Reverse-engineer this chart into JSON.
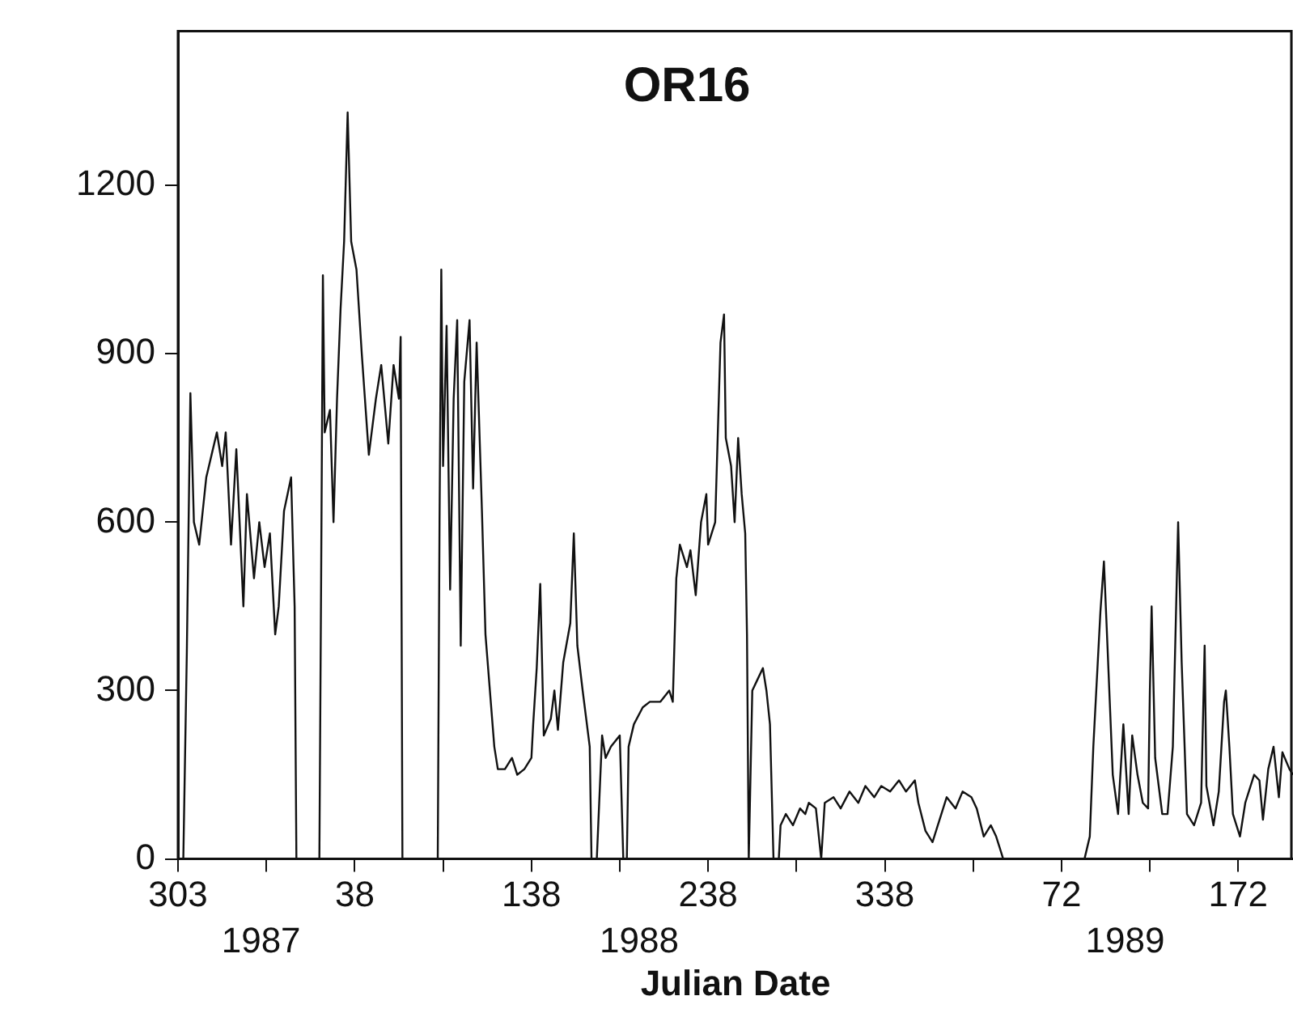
{
  "chart_data": {
    "type": "line",
    "title": "OR16",
    "xlabel": "Julian Date",
    "marker": "none",
    "grid": false,
    "legend": false,
    "xlim": [
      "1987-10-30",
      "1989-07-22"
    ],
    "xticks": [
      {
        "value": "1987-10-30",
        "label": "303"
      },
      {
        "value": "1987-12-19",
        "label": null
      },
      {
        "value": "1988-02-07",
        "label": "38"
      },
      {
        "value": "1988-03-28",
        "label": null
      },
      {
        "value": "1988-05-17",
        "label": "138"
      },
      {
        "value": "1988-07-06",
        "label": null
      },
      {
        "value": "1988-08-25",
        "label": "238"
      },
      {
        "value": "1988-10-14",
        "label": null
      },
      {
        "value": "1988-12-03",
        "label": "338"
      },
      {
        "value": "1989-01-22",
        "label": null
      },
      {
        "value": "1989-03-13",
        "label": "72"
      },
      {
        "value": "1989-05-02",
        "label": null
      },
      {
        "value": "1989-06-21",
        "label": "172"
      }
    ],
    "x2lim": [
      "1987-10-30",
      "1989-07-22"
    ],
    "x2ticks": [
      {
        "value": "1987-12-16",
        "label": "1987"
      },
      {
        "value": "1988-07-17",
        "label": "1988"
      },
      {
        "value": "1989-04-18",
        "label": "1989"
      }
    ],
    "ylim": [
      0,
      1475
    ],
    "yticks": [
      0,
      300,
      600,
      900,
      1200
    ],
    "series": [
      {
        "color": "#111111",
        "x": [
          "1987-11-02",
          "1987-11-04",
          "1987-11-06",
          "1987-11-08",
          "1987-11-11",
          "1987-11-15",
          "1987-11-18",
          "1987-11-21",
          "1987-11-24",
          "1987-11-26",
          "1987-11-29",
          "1987-12-02",
          "1987-12-06",
          "1987-12-08",
          "1987-12-12",
          "1987-12-15",
          "1987-12-18",
          "1987-12-21",
          "1987-12-24",
          "1987-12-26",
          "1987-12-29",
          "1988-01-02",
          "1988-01-04",
          "1988-01-05",
          "1988-01-18",
          "1988-01-19",
          "1988-01-20",
          "1988-01-21",
          "1988-01-24",
          "1988-01-26",
          "1988-01-28",
          "1988-01-30",
          "1988-02-01",
          "1988-02-03",
          "1988-02-05",
          "1988-02-08",
          "1988-02-11",
          "1988-02-15",
          "1988-02-19",
          "1988-02-22",
          "1988-02-26",
          "1988-02-29",
          "1988-03-03",
          "1988-03-04",
          "1988-03-05",
          "1988-03-25",
          "1988-03-26",
          "1988-03-27",
          "1988-03-28",
          "1988-03-30",
          "1988-04-01",
          "1988-04-03",
          "1988-04-05",
          "1988-04-07",
          "1988-04-09",
          "1988-04-12",
          "1988-04-14",
          "1988-04-16",
          "1988-04-19",
          "1988-04-21",
          "1988-04-23",
          "1988-04-26",
          "1988-04-28",
          "1988-05-02",
          "1988-05-06",
          "1988-05-09",
          "1988-05-13",
          "1988-05-17",
          "1988-05-18",
          "1988-05-20",
          "1988-05-22",
          "1988-05-24",
          "1988-05-28",
          "1988-05-30",
          "1988-06-01",
          "1988-06-04",
          "1988-06-08",
          "1988-06-10",
          "1988-06-12",
          "1988-06-15",
          "1988-06-19",
          "1988-06-20",
          "1988-06-23",
          "1988-06-26",
          "1988-06-28",
          "1988-07-01",
          "1988-07-06",
          "1988-07-08",
          "1988-07-10",
          "1988-07-11",
          "1988-07-14",
          "1988-07-19",
          "1988-07-23",
          "1988-07-29",
          "1988-08-03",
          "1988-08-05",
          "1988-08-07",
          "1988-08-09",
          "1988-08-13",
          "1988-08-15",
          "1988-08-18",
          "1988-08-21",
          "1988-08-24",
          "1988-08-25",
          "1988-08-29",
          "1988-09-01",
          "1988-09-03",
          "1988-09-04",
          "1988-09-07",
          "1988-09-09",
          "1988-09-11",
          "1988-09-13",
          "1988-09-15",
          "1988-09-16",
          "1988-09-17",
          "1988-09-19",
          "1988-09-22",
          "1988-09-25",
          "1988-09-27",
          "1988-09-29",
          "1988-10-01",
          "1988-10-04",
          "1988-10-05",
          "1988-10-08",
          "1988-10-12",
          "1988-10-16",
          "1988-10-19",
          "1988-10-21",
          "1988-10-25",
          "1988-10-28",
          "1988-10-30",
          "1988-11-04",
          "1988-11-08",
          "1988-11-13",
          "1988-11-18",
          "1988-11-22",
          "1988-11-27",
          "1988-12-01",
          "1988-12-06",
          "1988-12-11",
          "1988-12-15",
          "1988-12-20",
          "1988-12-22",
          "1988-12-26",
          "1988-12-30",
          "1989-01-02",
          "1989-01-07",
          "1989-01-12",
          "1989-01-16",
          "1989-01-21",
          "1989-01-24",
          "1989-01-28",
          "1989-02-01",
          "1989-02-04",
          "1989-02-06",
          "1989-02-08",
          "1989-03-26",
          "1989-03-29",
          "1989-03-31",
          "1989-04-04",
          "1989-04-06",
          "1989-04-08",
          "1989-04-11",
          "1989-04-14",
          "1989-04-17",
          "1989-04-20",
          "1989-04-22",
          "1989-04-25",
          "1989-04-28",
          "1989-05-01",
          "1989-05-02",
          "1989-05-03",
          "1989-05-05",
          "1989-05-09",
          "1989-05-12",
          "1989-05-15",
          "1989-05-18",
          "1989-05-20",
          "1989-05-23",
          "1989-05-27",
          "1989-05-31",
          "1989-06-02",
          "1989-06-03",
          "1989-06-07",
          "1989-06-10",
          "1989-06-13",
          "1989-06-14",
          "1989-06-16",
          "1989-06-18",
          "1989-06-22",
          "1989-06-25",
          "1989-06-28",
          "1989-06-30",
          "1989-07-03",
          "1989-07-05",
          "1989-07-08",
          "1989-07-11",
          "1989-07-14",
          "1989-07-16",
          "1989-07-20",
          "1989-07-22"
        ],
        "values": [
          0,
          370,
          830,
          600,
          560,
          680,
          720,
          760,
          700,
          760,
          560,
          730,
          450,
          650,
          500,
          600,
          520,
          580,
          400,
          450,
          620,
          680,
          450,
          0,
          0,
          500,
          1040,
          760,
          800,
          600,
          820,
          980,
          1100,
          1330,
          1100,
          1050,
          900,
          720,
          820,
          880,
          740,
          880,
          820,
          930,
          0,
          0,
          600,
          1050,
          700,
          950,
          480,
          820,
          960,
          380,
          850,
          960,
          660,
          920,
          620,
          400,
          320,
          200,
          160,
          160,
          180,
          150,
          160,
          180,
          240,
          340,
          490,
          220,
          250,
          300,
          230,
          350,
          420,
          580,
          380,
          300,
          200,
          0,
          0,
          220,
          180,
          200,
          220,
          0,
          0,
          200,
          240,
          270,
          280,
          280,
          300,
          280,
          500,
          560,
          520,
          550,
          470,
          600,
          650,
          560,
          600,
          920,
          970,
          750,
          700,
          600,
          750,
          650,
          580,
          400,
          0,
          300,
          320,
          340,
          300,
          240,
          0,
          0,
          60,
          80,
          60,
          90,
          80,
          100,
          90,
          0,
          100,
          110,
          90,
          120,
          100,
          130,
          110,
          130,
          120,
          140,
          120,
          140,
          100,
          50,
          30,
          60,
          110,
          90,
          120,
          110,
          90,
          40,
          60,
          40,
          20,
          0,
          0,
          40,
          200,
          440,
          530,
          380,
          150,
          80,
          240,
          80,
          220,
          150,
          100,
          90,
          300,
          450,
          180,
          80,
          80,
          200,
          600,
          350,
          80,
          60,
          100,
          380,
          130,
          60,
          120,
          280,
          300,
          200,
          80,
          40,
          100,
          130,
          150,
          140,
          70,
          160,
          200,
          110,
          190,
          160,
          150
        ]
      }
    ]
  }
}
